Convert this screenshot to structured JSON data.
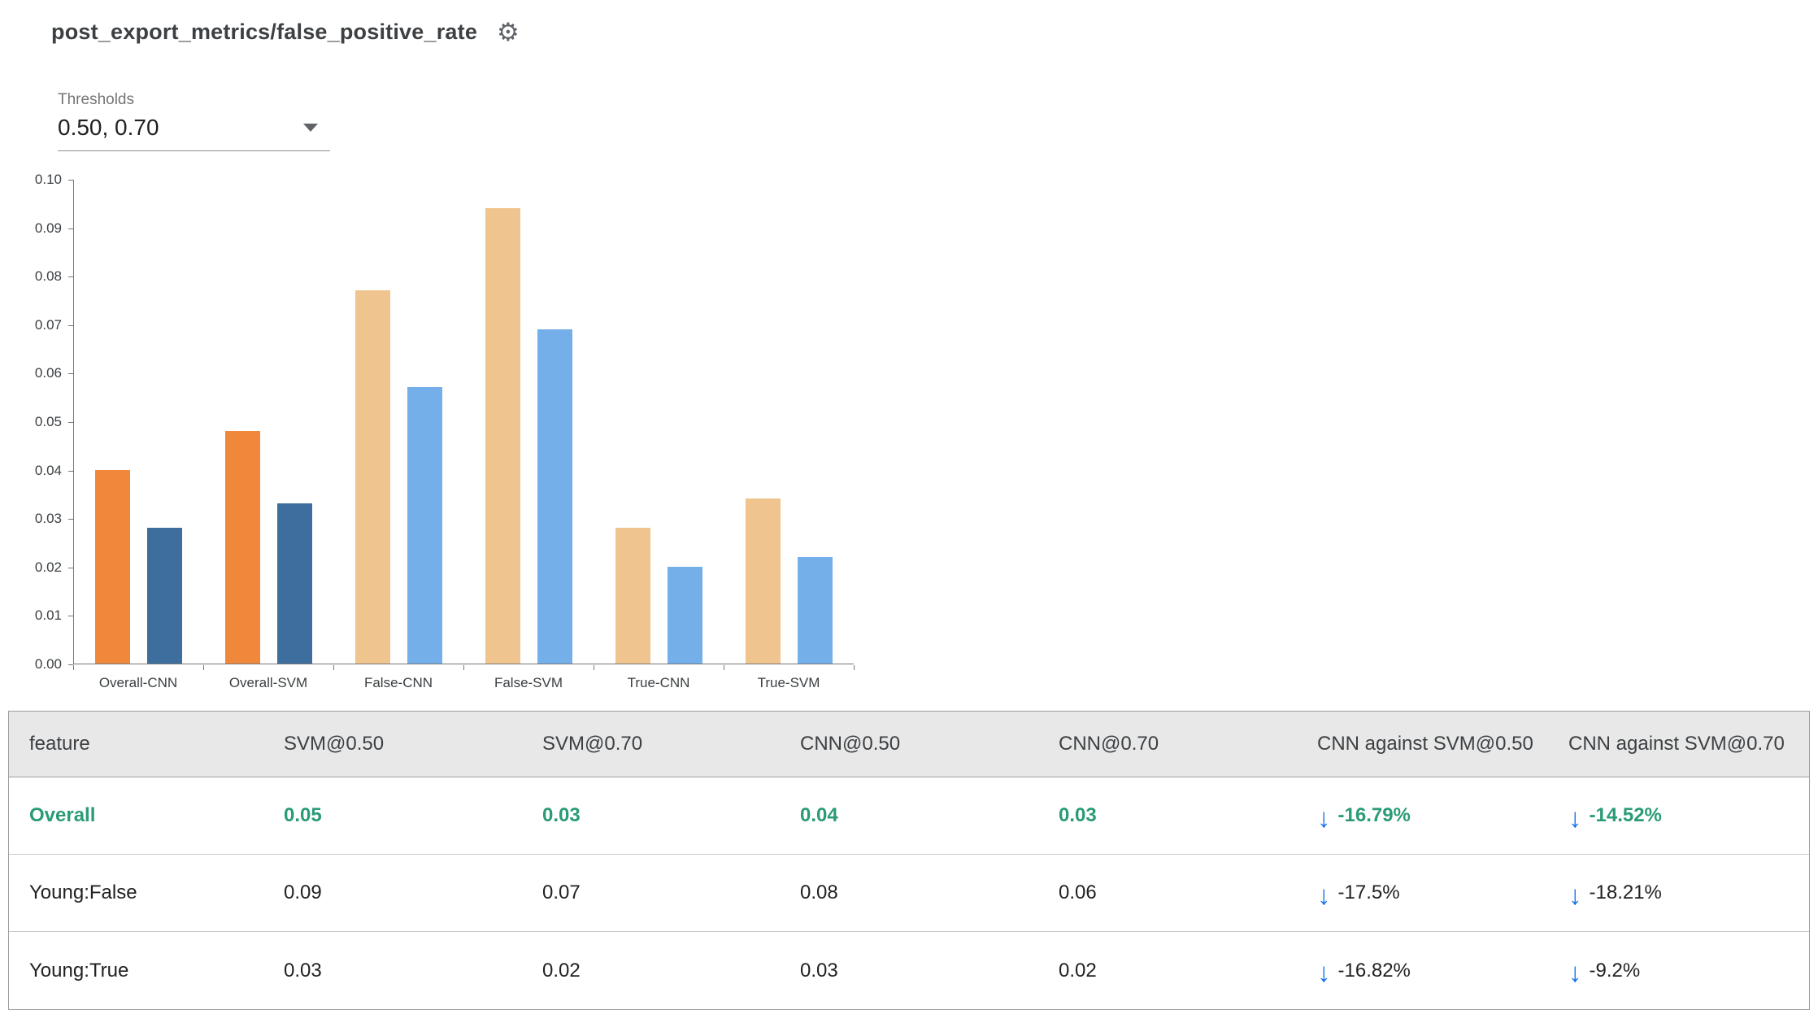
{
  "header": {
    "title": "post_export_metrics/false_positive_rate"
  },
  "icons": {
    "gear": "⚙",
    "down_arrow": "↓"
  },
  "thresholds": {
    "label": "Thresholds",
    "value": "0.50, 0.70"
  },
  "chart_data": {
    "type": "bar",
    "title": "",
    "xlabel": "",
    "ylabel": "",
    "ylim": [
      0,
      0.1
    ],
    "ytick_step": 0.01,
    "grid": false,
    "legend": "none",
    "yticks": [
      "0.10",
      "0.09",
      "0.08",
      "0.07",
      "0.06",
      "0.05",
      "0.04",
      "0.03",
      "0.02",
      "0.01",
      "0.00"
    ],
    "categories": [
      "Overall-CNN",
      "Overall-SVM",
      "False-CNN",
      "False-SVM",
      "True-CNN",
      "True-SVM"
    ],
    "series": [
      {
        "name": "0.50",
        "values": [
          0.04,
          0.048,
          0.077,
          0.094,
          0.028,
          0.034
        ]
      },
      {
        "name": "0.70",
        "values": [
          0.028,
          0.033,
          0.057,
          0.069,
          0.02,
          0.022
        ]
      }
    ],
    "bar_colors": [
      [
        "#f0883c",
        "#3d6e9e"
      ],
      [
        "#f0883c",
        "#3d6e9e"
      ],
      [
        "#efc48e",
        "#74afea"
      ],
      [
        "#efc48e",
        "#74afea"
      ],
      [
        "#efc48e",
        "#74afea"
      ],
      [
        "#efc48e",
        "#74afea"
      ]
    ]
  },
  "table": {
    "columns": [
      "feature",
      "SVM@0.50",
      "SVM@0.70",
      "CNN@0.50",
      "CNN@0.70",
      "CNN against SVM@0.50",
      "CNN against SVM@0.70"
    ],
    "rows": [
      {
        "feature": "Overall",
        "svm50": "0.05",
        "svm70": "0.03",
        "cnn50": "0.04",
        "cnn70": "0.03",
        "delta50": "-16.79%",
        "delta70": "-14.52%"
      },
      {
        "feature": "Young:False",
        "svm50": "0.09",
        "svm70": "0.07",
        "cnn50": "0.08",
        "cnn70": "0.06",
        "delta50": "-17.5%",
        "delta70": "-18.21%"
      },
      {
        "feature": "Young:True",
        "svm50": "0.03",
        "svm70": "0.02",
        "cnn50": "0.03",
        "cnn70": "0.02",
        "delta50": "-16.82%",
        "delta70": "-9.2%"
      }
    ]
  }
}
